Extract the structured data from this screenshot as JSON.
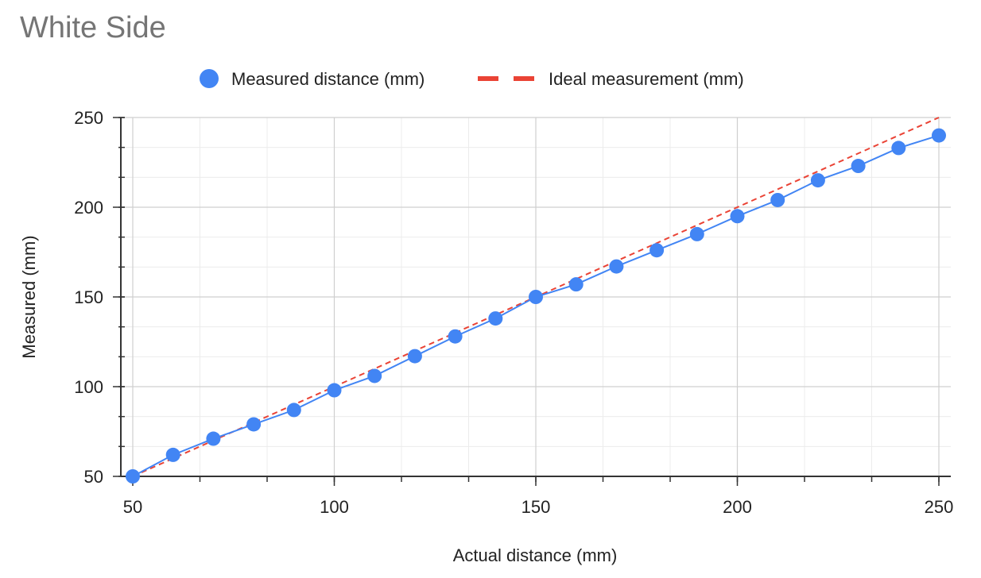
{
  "chart_data": {
    "type": "line",
    "title": "White Side",
    "xlabel": "Actual distance (mm)",
    "ylabel": "Measured (mm)",
    "xlim": [
      50,
      250
    ],
    "ylim": [
      50,
      250
    ],
    "x_ticks": [
      50,
      100,
      150,
      200,
      250
    ],
    "y_ticks": [
      50,
      100,
      150,
      200,
      250
    ],
    "minor_grid_step": 16.667,
    "grid": true,
    "legend_position": "top",
    "series": [
      {
        "name": "Measured distance (mm)",
        "color": "#4285F4",
        "style": "line-with-markers",
        "x": [
          50,
          60,
          70,
          80,
          90,
          100,
          110,
          120,
          130,
          140,
          150,
          160,
          170,
          180,
          190,
          200,
          210,
          220,
          230,
          240,
          250
        ],
        "y": [
          50,
          62,
          71,
          79,
          87,
          98,
          106,
          117,
          128,
          138,
          150,
          157,
          167,
          176,
          185,
          195,
          204,
          215,
          223,
          233,
          240
        ]
      },
      {
        "name": "Ideal measurement (mm)",
        "color": "#EA4335",
        "style": "dashed-line",
        "x": [
          50,
          250
        ],
        "y": [
          50,
          250
        ]
      }
    ]
  }
}
